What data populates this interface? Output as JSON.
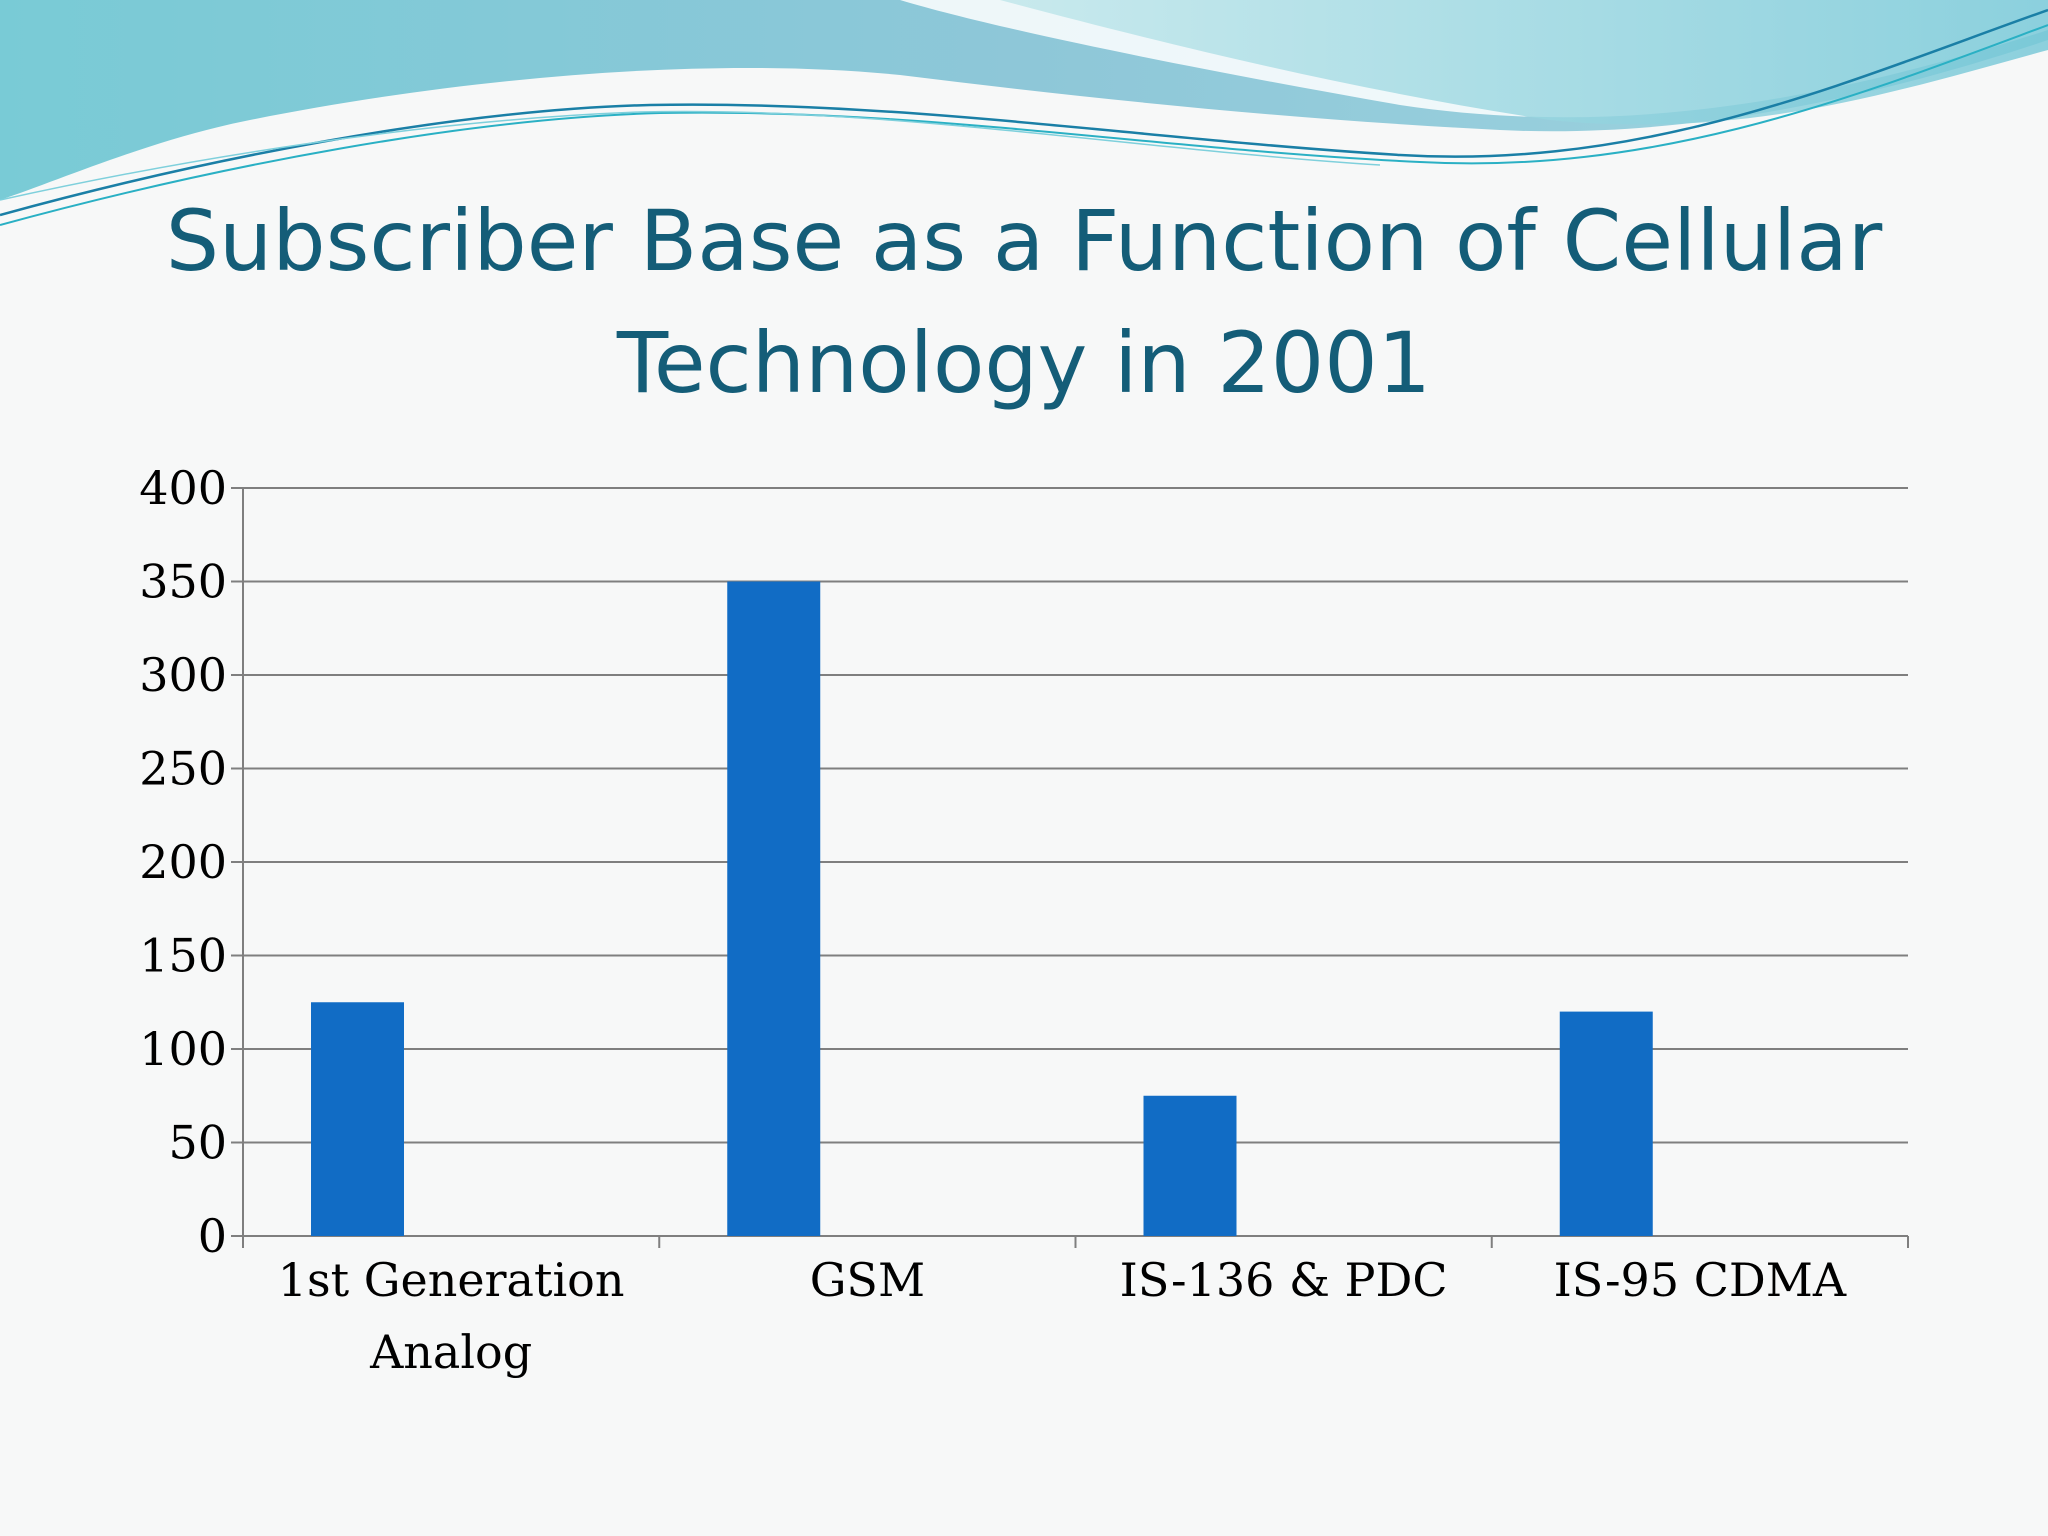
{
  "slide": {
    "title_line1": "Subscriber Base as a Function of Cellular",
    "title_line2": "Technology in 2001"
  },
  "colors": {
    "title": "#145d78",
    "bar": "#116cc5",
    "gridline": "#7f7f7f",
    "wave_light": "#a8dbe3",
    "wave_mid": "#6ec4d4",
    "wave_dark": "#2a8fb0"
  },
  "chart_data": {
    "type": "bar",
    "categories": [
      [
        "1st Generation",
        "Analog"
      ],
      [
        "GSM"
      ],
      [
        "IS-136 & PDC"
      ],
      [
        "IS-95 CDMA"
      ]
    ],
    "values": [
      125,
      350,
      75,
      120
    ],
    "title": "",
    "xlabel": "",
    "ylabel": "",
    "ylim": [
      0,
      400
    ],
    "yticks": [
      0,
      50,
      100,
      150,
      200,
      250,
      300,
      350,
      400
    ],
    "grid": true,
    "legend": "none"
  }
}
